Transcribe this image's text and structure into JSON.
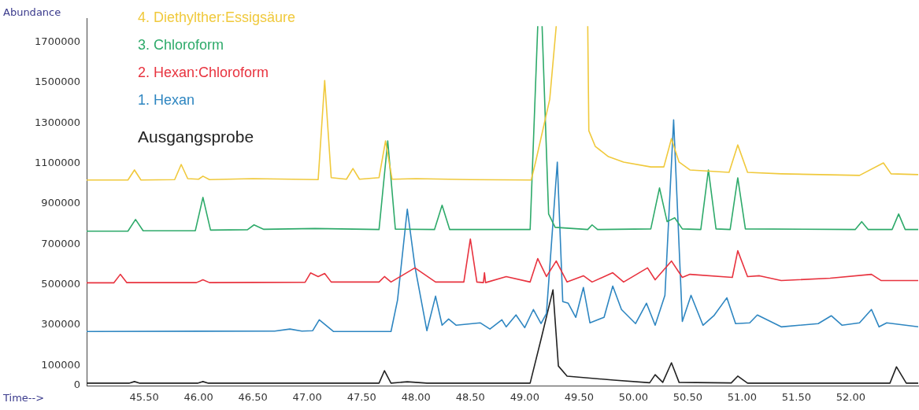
{
  "chart_data": {
    "type": "line",
    "ylabel": "Abundance",
    "xlabel": "Time-->",
    "legend": "top left",
    "grid": false,
    "marker": "none",
    "line_style": "solid",
    "xlim": [
      44.97,
      52.62
    ],
    "ylim": [
      0,
      1820000
    ],
    "xticks": [
      {
        "value": 45.5,
        "label": "45.50"
      },
      {
        "value": 46,
        "label": "46.00"
      },
      {
        "value": 46.5,
        "label": "46.50"
      },
      {
        "value": 47,
        "label": "47.00"
      },
      {
        "value": 47.5,
        "label": "47.50"
      },
      {
        "value": 48,
        "label": "48.00"
      },
      {
        "value": 48.5,
        "label": "48.50"
      },
      {
        "value": 49,
        "label": "49.00"
      },
      {
        "value": 49.5,
        "label": "49.50"
      },
      {
        "value": 50,
        "label": "50.00"
      },
      {
        "value": 50.5,
        "label": "50.50"
      },
      {
        "value": 51,
        "label": "51.00"
      },
      {
        "value": 51.5,
        "label": "51.50"
      },
      {
        "value": 52,
        "label": "52.00"
      }
    ],
    "yticks": [
      0,
      100000,
      300000,
      500000,
      700000,
      900000,
      1100000,
      1300000,
      1500000,
      1700000
    ],
    "series": [
      {
        "name": "4. Diethylther:Essigsäure",
        "color": "#f0c93c",
        "x": [
          44.97,
          45.35,
          45.41,
          45.47,
          45.78,
          45.84,
          45.9,
          46.0,
          46.04,
          46.1,
          46.5,
          47.1,
          47.16,
          47.22,
          47.36,
          47.42,
          47.48,
          47.66,
          47.72,
          47.78,
          48.0,
          48.5,
          49.06,
          49.1,
          49.23,
          49.29,
          49.3,
          49.57,
          49.58,
          49.59,
          49.65,
          49.77,
          49.91,
          50.16,
          50.28,
          50.35,
          50.42,
          50.52,
          50.88,
          50.96,
          51.05,
          51.36,
          52.08,
          52.3,
          52.37,
          52.62
        ],
        "values": [
          1018000,
          1018000,
          1068000,
          1018000,
          1020000,
          1095000,
          1025000,
          1022000,
          1037000,
          1020000,
          1025000,
          1020000,
          1511000,
          1030000,
          1022000,
          1075000,
          1022000,
          1030000,
          1212000,
          1022000,
          1025000,
          1020000,
          1018000,
          1107000,
          1417000,
          1780000,
          null,
          null,
          1780000,
          1262000,
          1184000,
          1134000,
          1107000,
          1083000,
          1083000,
          1223000,
          1107000,
          1068000,
          1056000,
          1192000,
          1056000,
          1049000,
          1041000,
          1103000,
          1049000,
          1045000
        ]
      },
      {
        "name": "3. Chloroform",
        "color": "#2eaa6a",
        "x": [
          44.97,
          45.35,
          45.42,
          45.49,
          45.97,
          46.04,
          46.11,
          46.45,
          46.51,
          46.6,
          47.07,
          47.66,
          47.74,
          47.81,
          48.17,
          48.24,
          48.31,
          49.05,
          49.12,
          49.14,
          49.16,
          49.22,
          49.28,
          49.58,
          49.62,
          49.67,
          50.16,
          50.24,
          50.31,
          50.38,
          50.45,
          50.62,
          50.69,
          50.76,
          50.89,
          50.96,
          51.03,
          52.04,
          52.1,
          52.16,
          52.38,
          52.44,
          52.5,
          52.62
        ],
        "values": [
          765000,
          765000,
          823000,
          767000,
          767000,
          932000,
          770000,
          772000,
          796000,
          774000,
          778000,
          773000,
          1212000,
          775000,
          773000,
          893000,
          773000,
          773000,
          1780000,
          null,
          1780000,
          850000,
          784000,
          773000,
          796000,
          773000,
          776000,
          979000,
          812000,
          831000,
          776000,
          773000,
          1068000,
          776000,
          773000,
          1029000,
          776000,
          773000,
          812000,
          773000,
          773000,
          850000,
          773000,
          773000
        ]
      },
      {
        "name": "2. Hexan:Chloroform",
        "color": "#e8333f",
        "x": [
          44.97,
          45.22,
          45.28,
          45.34,
          45.98,
          46.04,
          46.1,
          46.98,
          47.03,
          47.1,
          47.16,
          47.22,
          47.66,
          47.71,
          47.77,
          47.99,
          48.18,
          48.44,
          48.5,
          48.56,
          48.62,
          48.63,
          48.64,
          48.83,
          49.05,
          49.12,
          49.2,
          49.29,
          49.39,
          49.54,
          49.62,
          49.81,
          49.91,
          50.13,
          50.2,
          50.35,
          50.45,
          50.52,
          50.91,
          50.96,
          51.05,
          51.16,
          51.36,
          51.81,
          52.19,
          52.28,
          52.62
        ],
        "values": [
          509000,
          509000,
          551000,
          510000,
          510000,
          524000,
          510000,
          512000,
          558000,
          540000,
          555000,
          513000,
          513000,
          540000,
          513000,
          583000,
          513000,
          513000,
          726000,
          513000,
          510000,
          559000,
          510000,
          540000,
          513000,
          629000,
          540000,
          617000,
          513000,
          544000,
          513000,
          559000,
          513000,
          583000,
          524000,
          617000,
          536000,
          551000,
          536000,
          668000,
          540000,
          544000,
          520000,
          532000,
          551000,
          520000,
          520000
        ]
      },
      {
        "name": "1. Hexan",
        "color": "#2e86c1",
        "x": [
          44.97,
          46.7,
          46.84,
          46.95,
          47.05,
          47.11,
          47.24,
          47.77,
          47.83,
          47.92,
          47.99,
          48.1,
          48.18,
          48.24,
          48.3,
          48.37,
          48.59,
          48.68,
          48.79,
          48.83,
          48.92,
          49.0,
          49.08,
          49.15,
          49.2,
          49.3,
          49.35,
          49.4,
          49.47,
          49.54,
          49.6,
          49.73,
          49.81,
          49.89,
          50.02,
          50.12,
          50.2,
          50.29,
          50.37,
          50.45,
          50.53,
          50.64,
          50.74,
          50.86,
          50.94,
          51.07,
          51.14,
          51.36,
          51.7,
          51.82,
          51.92,
          52.08,
          52.19,
          52.26,
          52.33,
          52.62
        ],
        "values": [
          268000,
          270000,
          280000,
          270000,
          272000,
          326000,
          268000,
          268000,
          423000,
          874000,
          590000,
          272000,
          443000,
          299000,
          330000,
          299000,
          311000,
          280000,
          326000,
          291000,
          350000,
          287000,
          377000,
          307000,
          357000,
          1107000,
          416000,
          408000,
          338000,
          486000,
          311000,
          338000,
          493000,
          377000,
          307000,
          408000,
          299000,
          447000,
          1316000,
          318000,
          447000,
          299000,
          346000,
          435000,
          307000,
          311000,
          350000,
          291000,
          307000,
          346000,
          299000,
          311000,
          377000,
          291000,
          311000,
          291000
        ]
      },
      {
        "name": "Ausgangsprobe",
        "color": "#222222",
        "x": [
          44.97,
          45.36,
          45.41,
          45.46,
          45.99,
          46.04,
          46.09,
          47.66,
          47.71,
          47.77,
          47.92,
          48.1,
          49.05,
          49.15,
          49.26,
          49.31,
          49.39,
          49.82,
          50.15,
          50.2,
          50.27,
          50.35,
          50.42,
          50.9,
          50.96,
          51.05,
          52.36,
          52.42,
          52.51,
          52.62
        ],
        "values": [
          12000,
          12000,
          20000,
          12000,
          12000,
          20000,
          12000,
          12000,
          74000,
          12000,
          19000,
          12000,
          12000,
          229000,
          474000,
          97000,
          47000,
          27000,
          14000,
          54000,
          16000,
          113000,
          16000,
          13000,
          47000,
          12000,
          12000,
          93000,
          12000,
          12000
        ]
      }
    ]
  }
}
